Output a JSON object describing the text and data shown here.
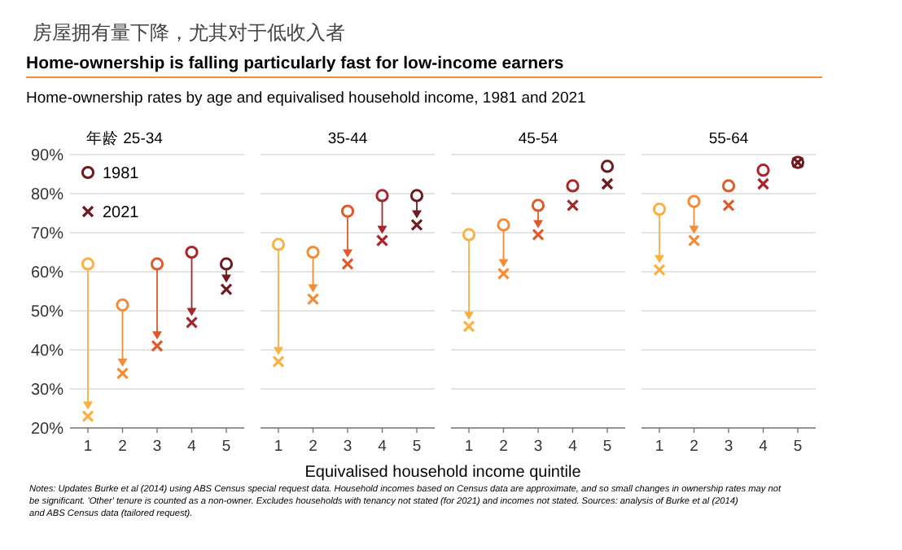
{
  "chart_data": [
    {
      "type": "other",
      "title": "Home-ownership is falling particularly fast for low-income earners",
      "subtitle": "Home-ownership rates by age and equivalised household income, 1981 and 2021",
      "annotations": [
        "房屋拥有量下降，尤其对于低收入者",
        "Notes: Updates Burke et al (2014) using ABS Census special request data. Household incomes based on Census data are approximate, and so small changes in ownership rates may not be significant. 'Other' tenure is counted as a non-owner. Excludes households with tenancy not stated (for 2021) and incomes not stated. Sources: analysis of Burke et al (2014) and ABS Census data (tailored request)."
      ]
    },
    {
      "type": "scatter",
      "title": "年龄 25-34",
      "categories": [
        "1",
        "2",
        "3",
        "4",
        "5"
      ],
      "ylim": [
        20,
        90
      ],
      "yticks": [
        {
          "value": 20,
          "label": "20%"
        },
        {
          "value": 30,
          "label": "30%"
        },
        {
          "value": 40,
          "label": "40%"
        },
        {
          "value": 50,
          "label": "50%"
        },
        {
          "value": 60,
          "label": "60%"
        },
        {
          "value": 70,
          "label": "70%"
        },
        {
          "value": 80,
          "label": "80%"
        },
        {
          "value": 90,
          "label": "90%"
        }
      ],
      "grid": "y",
      "legend": "top left",
      "series": [
        {
          "name": "1981",
          "marker": "circle",
          "colors": [
            "#fbb040",
            "#f68b33",
            "#e0592a",
            "#a6262c",
            "#6e1a1e"
          ],
          "values": [
            62,
            51.5,
            62,
            65,
            62
          ]
        },
        {
          "name": "2021",
          "marker": "cross",
          "colors": [
            "#fbb040",
            "#f68b33",
            "#e0592a",
            "#a6262c",
            "#6e1a1e"
          ],
          "values": [
            23,
            34,
            41,
            47,
            55.5
          ]
        }
      ]
    },
    {
      "type": "scatter",
      "title": "35-44",
      "xlabel": "Equivalised household income quintile",
      "categories": [
        "1",
        "2",
        "3",
        "4",
        "5"
      ],
      "ylim": [
        20,
        90
      ],
      "yticks": [
        {
          "value": 20,
          "label": null
        },
        {
          "value": 30,
          "label": null
        },
        {
          "value": 40,
          "label": null
        },
        {
          "value": 50,
          "label": null
        },
        {
          "value": 60,
          "label": null
        },
        {
          "value": 70,
          "label": null
        },
        {
          "value": 80,
          "label": null
        },
        {
          "value": 90,
          "label": null
        }
      ],
      "grid": "y",
      "tick_labels": "x",
      "series": [
        {
          "marker": "circle",
          "colors": [
            "#fbb040",
            "#f68b33",
            "#e0592a",
            "#a6262c",
            "#6e1a1e"
          ],
          "values": [
            67,
            65,
            75.5,
            79.5,
            79.5
          ]
        },
        {
          "marker": "cross",
          "colors": [
            "#fbb040",
            "#f68b33",
            "#e0592a",
            "#a6262c",
            "#6e1a1e"
          ],
          "values": [
            37,
            53,
            62,
            68,
            72
          ]
        }
      ]
    },
    {
      "type": "scatter",
      "title": "45-54",
      "categories": [
        "1",
        "2",
        "3",
        "4",
        "5"
      ],
      "ylim": [
        20,
        90
      ],
      "yticks": [
        {
          "value": 20,
          "label": null
        },
        {
          "value": 30,
          "label": null
        },
        {
          "value": 40,
          "label": null
        },
        {
          "value": 50,
          "label": null
        },
        {
          "value": 60,
          "label": null
        },
        {
          "value": 70,
          "label": null
        },
        {
          "value": 80,
          "label": null
        },
        {
          "value": 90,
          "label": null
        }
      ],
      "grid": "y",
      "tick_labels": "x",
      "series": [
        {
          "marker": "circle",
          "colors": [
            "#fbb040",
            "#f68b33",
            "#e0592a",
            "#a6262c",
            "#6e1a1e"
          ],
          "values": [
            69.5,
            72,
            77,
            82,
            87
          ]
        },
        {
          "marker": "cross",
          "colors": [
            "#fbb040",
            "#f68b33",
            "#e0592a",
            "#a6262c",
            "#6e1a1e"
          ],
          "values": [
            46,
            59.5,
            69.5,
            77,
            82.5
          ]
        }
      ]
    },
    {
      "type": "scatter",
      "title": "55-64",
      "categories": [
        "1",
        "2",
        "3",
        "4",
        "5"
      ],
      "ylim": [
        20,
        90
      ],
      "yticks": [
        {
          "value": 20,
          "label": null
        },
        {
          "value": 30,
          "label": null
        },
        {
          "value": 40,
          "label": null
        },
        {
          "value": 50,
          "label": null
        },
        {
          "value": 60,
          "label": null
        },
        {
          "value": 70,
          "label": null
        },
        {
          "value": 80,
          "label": null
        },
        {
          "value": 90,
          "label": null
        }
      ],
      "grid": "y",
      "tick_labels": "x",
      "series": [
        {
          "marker": "circle",
          "colors": [
            "#fbb040",
            "#f68b33",
            "#e0592a",
            "#a6262c",
            "#6e1a1e"
          ],
          "values": [
            76,
            78,
            82,
            86,
            88
          ]
        },
        {
          "marker": "cross",
          "colors": [
            "#fbb040",
            "#f68b33",
            "#e0592a",
            "#a6262c",
            "#6e1a1e"
          ],
          "values": [
            60.5,
            68,
            77,
            82.5,
            88
          ]
        }
      ]
    }
  ]
}
